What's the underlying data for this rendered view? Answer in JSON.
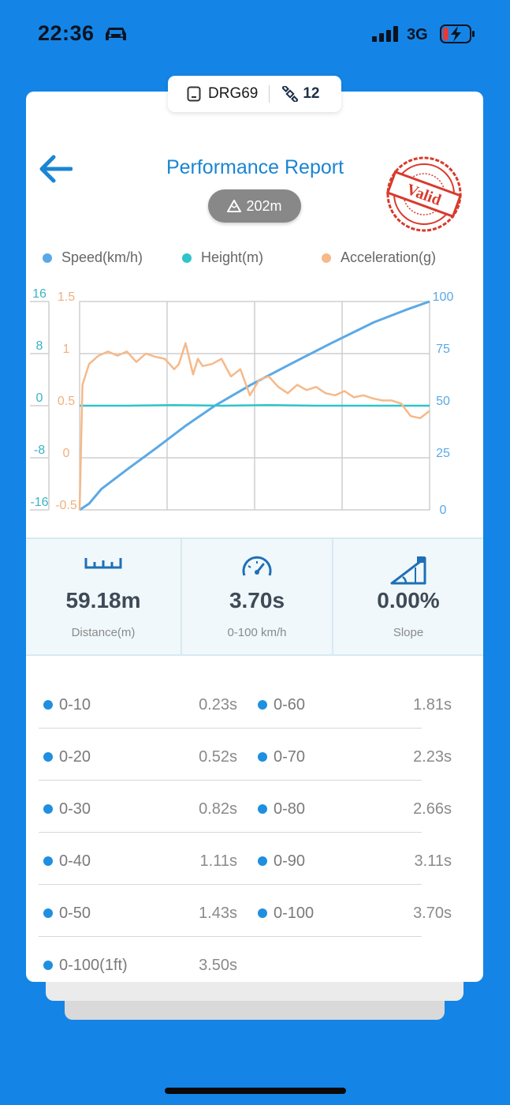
{
  "status_bar": {
    "time": "22:36",
    "network": "3G"
  },
  "device": {
    "name": "DRG69",
    "satellites": "12"
  },
  "header": {
    "title": "Performance Report",
    "altitude": "202m",
    "stamp_text": "Valid"
  },
  "legend": [
    {
      "label": "Speed(km/h)",
      "color": "#5aa9e6"
    },
    {
      "label": "Height(m)",
      "color": "#2ec4c9"
    },
    {
      "label": "Acceleration(g)",
      "color": "#f5b98a"
    }
  ],
  "chart_data": {
    "type": "line",
    "x_range": [
      0,
      3.7
    ],
    "axes": {
      "height_ticks": [
        "16",
        "8",
        "0",
        "-8",
        "-16"
      ],
      "height_range": [
        -16,
        16
      ],
      "accel_ticks": [
        "1.5",
        "1",
        "0.5",
        "0",
        "-0.5"
      ],
      "accel_range": [
        -0.5,
        1.5
      ],
      "speed_ticks": [
        "100",
        "75",
        "50",
        "25",
        "0"
      ],
      "speed_range": [
        0,
        100
      ]
    },
    "grid": true,
    "series": [
      {
        "name": "Speed(km/h)",
        "color": "#5aa9e6",
        "axis": "speed",
        "x": [
          0,
          0.1,
          0.23,
          0.52,
          0.82,
          1.11,
          1.43,
          1.81,
          2.23,
          2.66,
          3.11,
          3.45,
          3.7
        ],
        "y": [
          0,
          3,
          10,
          20,
          30,
          40,
          50,
          60,
          70,
          80,
          90,
          96,
          100
        ]
      },
      {
        "name": "Height(m)",
        "color": "#2ec4c9",
        "axis": "height",
        "x": [
          0,
          0.5,
          1.0,
          1.5,
          2.0,
          2.5,
          3.0,
          3.5,
          3.7
        ],
        "y": [
          0,
          0,
          0.1,
          0,
          0.1,
          0,
          0,
          0,
          0
        ]
      },
      {
        "name": "Acceleration(g)",
        "color": "#f5b98a",
        "axis": "accel",
        "x": [
          0,
          0.03,
          0.1,
          0.2,
          0.3,
          0.4,
          0.5,
          0.6,
          0.7,
          0.8,
          0.9,
          1.0,
          1.05,
          1.12,
          1.2,
          1.25,
          1.3,
          1.4,
          1.5,
          1.6,
          1.7,
          1.8,
          1.9,
          2.0,
          2.1,
          2.2,
          2.3,
          2.4,
          2.5,
          2.6,
          2.7,
          2.8,
          2.9,
          3.0,
          3.1,
          3.2,
          3.3,
          3.4,
          3.5,
          3.6,
          3.7
        ],
        "y": [
          -0.5,
          0.7,
          0.9,
          0.98,
          1.02,
          0.98,
          1.02,
          0.92,
          1.0,
          0.97,
          0.95,
          0.85,
          0.9,
          1.1,
          0.8,
          0.95,
          0.88,
          0.9,
          0.95,
          0.78,
          0.85,
          0.6,
          0.75,
          0.78,
          0.68,
          0.62,
          0.7,
          0.65,
          0.68,
          0.62,
          0.6,
          0.64,
          0.58,
          0.6,
          0.57,
          0.55,
          0.55,
          0.52,
          0.4,
          0.38,
          0.45
        ]
      }
    ]
  },
  "stats": [
    {
      "value": "59.18m",
      "label": "Distance(m)",
      "icon": "ruler-icon"
    },
    {
      "value": "3.70s",
      "label": "0-100 km/h",
      "icon": "speedometer-icon"
    },
    {
      "value": "0.00%",
      "label": "Slope",
      "icon": "slope-icon"
    }
  ],
  "times": [
    [
      {
        "label": "0-10",
        "value": "0.23s"
      },
      {
        "label": "0-60",
        "value": "1.81s"
      }
    ],
    [
      {
        "label": "0-20",
        "value": "0.52s"
      },
      {
        "label": "0-70",
        "value": "2.23s"
      }
    ],
    [
      {
        "label": "0-30",
        "value": "0.82s"
      },
      {
        "label": "0-80",
        "value": "2.66s"
      }
    ],
    [
      {
        "label": "0-40",
        "value": "1.11s"
      },
      {
        "label": "0-90",
        "value": "3.11s"
      }
    ],
    [
      {
        "label": "0-50",
        "value": "1.43s"
      },
      {
        "label": "0-100",
        "value": "3.70s"
      }
    ],
    [
      {
        "label": "0-100(1ft)",
        "value": "3.50s"
      }
    ]
  ]
}
